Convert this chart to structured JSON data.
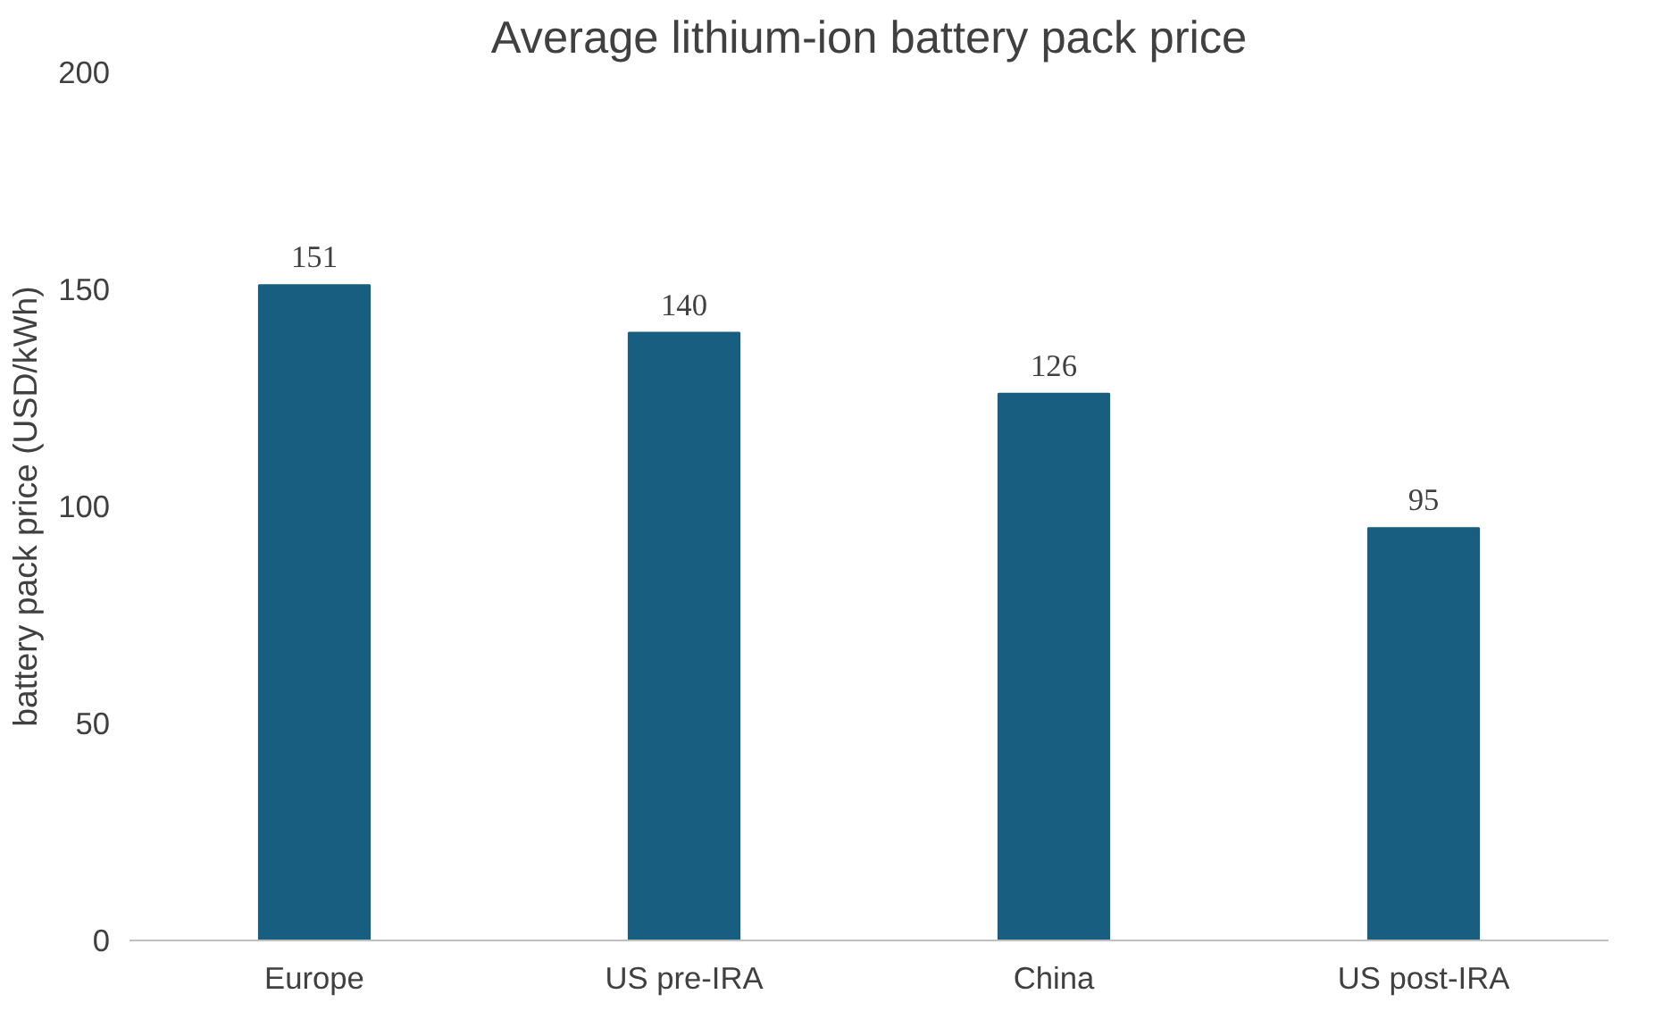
{
  "chart_data": {
    "type": "bar",
    "title": "Average lithium-ion battery pack price",
    "ylabel": "battery pack price (USD/kWh)",
    "categories": [
      "Europe",
      "US pre-IRA",
      "China",
      "US post-IRA"
    ],
    "values": [
      151,
      140,
      126,
      95
    ],
    "color": "#175e81",
    "ylim": [
      0,
      200
    ],
    "yticks": [
      0,
      50,
      100,
      150,
      200
    ],
    "grid": false,
    "data_labels": true
  }
}
